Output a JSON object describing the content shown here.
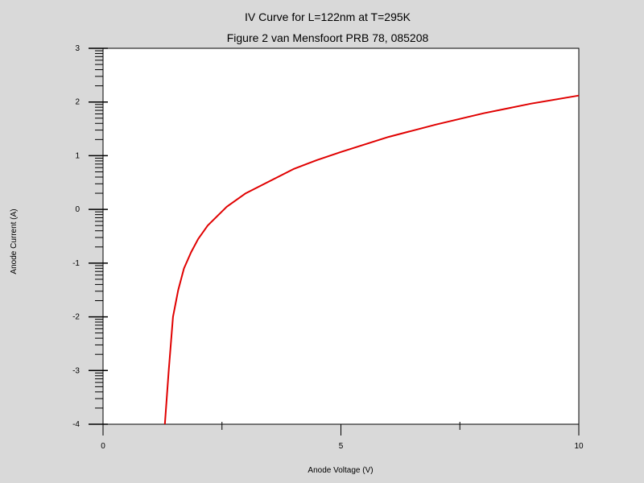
{
  "chart_data": {
    "type": "line",
    "title": "IV Curve for L=122nm at T=295K",
    "subtitle": "Figure 2 van Mensfoort PRB 78, 085208",
    "xlabel": "Anode Voltage (V)",
    "ylabel": "Anode Current (A)",
    "xlim": [
      0,
      10
    ],
    "ylim": [
      -4,
      3
    ],
    "x_ticks": [
      {
        "value": 0,
        "label": "0"
      },
      {
        "value": 5,
        "label": "5"
      },
      {
        "value": 10,
        "label": "10"
      }
    ],
    "y_ticks": [
      {
        "value": 3,
        "label": "3"
      },
      {
        "value": 2,
        "label": "2"
      },
      {
        "value": 1,
        "label": "1"
      },
      {
        "value": 0,
        "label": "0"
      },
      {
        "value": -1,
        "label": "-1"
      },
      {
        "value": -2,
        "label": "-2"
      },
      {
        "value": -3,
        "label": "-3"
      },
      {
        "value": -4,
        "label": "-4"
      }
    ],
    "grid": false,
    "line_color": "#e00000",
    "series": [
      {
        "x": [
          1.3,
          1.38,
          1.47,
          1.58,
          1.7,
          1.85,
          2.0,
          2.2,
          2.6,
          3.0,
          3.4,
          4.0,
          4.5,
          5.0,
          6.0,
          7.0,
          8.0,
          9.0,
          10.0
        ],
        "y": [
          -4.0,
          -3.0,
          -2.0,
          -1.5,
          -1.1,
          -0.8,
          -0.55,
          -0.3,
          0.05,
          0.3,
          0.48,
          0.75,
          0.92,
          1.07,
          1.35,
          1.58,
          1.79,
          1.97,
          2.12
        ]
      }
    ]
  }
}
